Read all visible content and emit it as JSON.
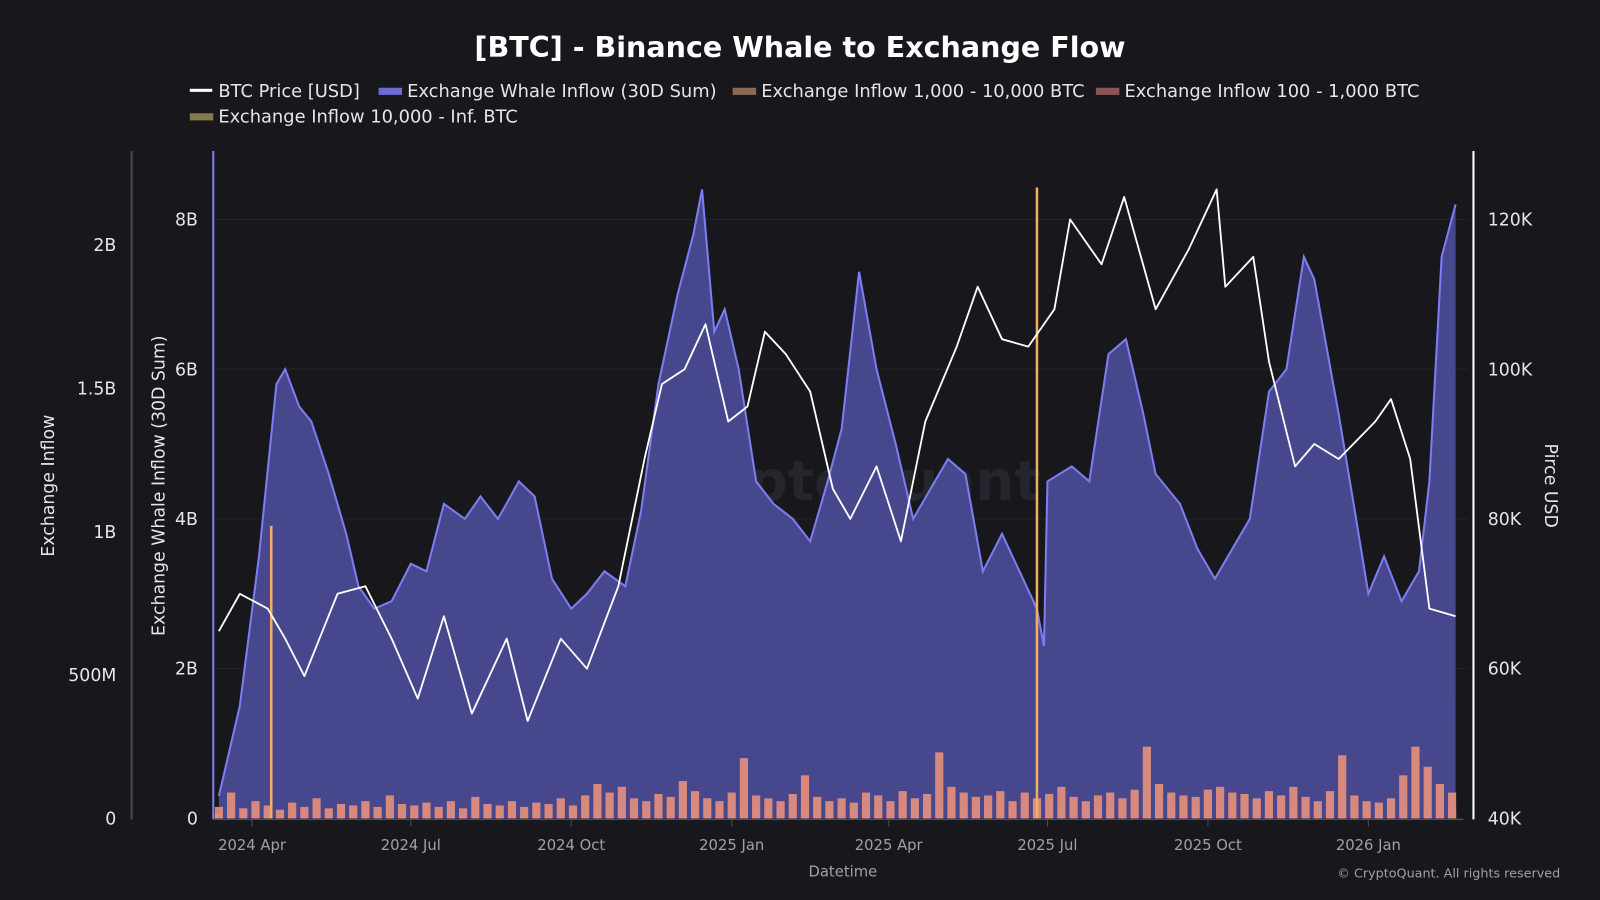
{
  "chart_data": {
    "type": "area",
    "title": "[BTC] - Binance Whale to Exchange Flow",
    "xlabel": "Datetime",
    "x_ticks": [
      "2024 Apr",
      "2024 Jul",
      "2024 Oct",
      "2025 Jan",
      "2025 Apr",
      "2025 Jul",
      "2025 Oct",
      "2026 Jan"
    ],
    "x_tick_dates": [
      "2024-04-01",
      "2024-07-01",
      "2024-10-01",
      "2025-01-01",
      "2025-04-01",
      "2025-07-01",
      "2025-10-01",
      "2026-01-01"
    ],
    "xlim": [
      "2024-03-10",
      "2026-02-28"
    ],
    "axes": {
      "left_outer": {
        "label": "Exchange Inflow",
        "ticks": [
          "0",
          "500M",
          "1B",
          "1.5B",
          "2B"
        ],
        "tick_values": [
          0,
          0.5,
          1,
          1.5,
          2
        ],
        "ylim": [
          0,
          2.33
        ],
        "unit": "B USD"
      },
      "left_inner": {
        "label": "Exchange Whale Inflow (30D Sum)",
        "ticks": [
          "0",
          "2B",
          "4B",
          "6B",
          "8B"
        ],
        "tick_values": [
          0,
          2,
          4,
          6,
          8
        ],
        "ylim": [
          0,
          8.93
        ],
        "unit": "B USD"
      },
      "right": {
        "label": "Pirce USD",
        "ticks": [
          "40K",
          "60K",
          "80K",
          "100K",
          "120K"
        ],
        "tick_values": [
          40,
          60,
          80,
          100,
          120
        ],
        "ylim": [
          40,
          129.3
        ],
        "unit": "K USD"
      }
    },
    "grid": true,
    "legend_placement": "top",
    "legend": [
      {
        "name": "BTC Price [USD]",
        "color": "#ffffff",
        "type": "line"
      },
      {
        "name": "Exchange Whale Inflow (30D Sum)",
        "color": "#6b6bd6",
        "type": "area"
      },
      {
        "name": "Exchange Inflow 1,000 - 10,000 BTC",
        "color": "#8a6a55",
        "type": "bar"
      },
      {
        "name": "Exchange Inflow 100 - 1,000 BTC",
        "color": "#8a5458",
        "type": "bar"
      },
      {
        "name": "Exchange Inflow 10,000 - Inf. BTC",
        "color": "#857a4a",
        "type": "bar"
      }
    ],
    "watermark": "CryptoQuant",
    "copyright": "© CryptoQuant. All rights reserved",
    "colors": {
      "background": "#17171c",
      "whale_fill": "#4a4a94",
      "whale_line": "#7d7df2",
      "inflow_1k_10k": "#e8907c",
      "inflow_100_1k": "#c87a78",
      "inflow_10k_inf": "#f0b060",
      "price": "#ffffff",
      "price_overlap": "#c8c8ff"
    },
    "whale_inflow_30d": {
      "dates": [
        "2024-03-13",
        "2024-03-25",
        "2024-04-05",
        "2024-04-15",
        "2024-04-20",
        "2024-04-28",
        "2024-05-05",
        "2024-05-15",
        "2024-05-25",
        "2024-06-01",
        "2024-06-10",
        "2024-06-20",
        "2024-07-01",
        "2024-07-10",
        "2024-07-20",
        "2024-08-01",
        "2024-08-10",
        "2024-08-20",
        "2024-09-01",
        "2024-09-10",
        "2024-09-20",
        "2024-10-01",
        "2024-10-10",
        "2024-10-20",
        "2024-11-01",
        "2024-11-10",
        "2024-11-20",
        "2024-12-01",
        "2024-12-10",
        "2024-12-15",
        "2024-12-22",
        "2024-12-28",
        "2025-01-05",
        "2025-01-15",
        "2025-01-25",
        "2025-02-05",
        "2025-02-15",
        "2025-02-25",
        "2025-03-05",
        "2025-03-15",
        "2025-03-25",
        "2025-04-05",
        "2025-04-15",
        "2025-04-25",
        "2025-05-05",
        "2025-05-15",
        "2025-05-25",
        "2025-06-05",
        "2025-06-15",
        "2025-06-25",
        "2025-06-29",
        "2025-07-01",
        "2025-07-15",
        "2025-07-25",
        "2025-08-05",
        "2025-08-15",
        "2025-08-25",
        "2025-09-01",
        "2025-09-15",
        "2025-09-25",
        "2025-10-05",
        "2025-10-15",
        "2025-10-25",
        "2025-11-05",
        "2025-11-15",
        "2025-11-25",
        "2025-12-01",
        "2025-12-15",
        "2025-12-25",
        "2026-01-01",
        "2026-01-10",
        "2026-01-20",
        "2026-01-30",
        "2026-02-05",
        "2026-02-12",
        "2026-02-20"
      ],
      "values": [
        0.3,
        1.5,
        3.5,
        5.8,
        6.0,
        5.5,
        5.3,
        4.6,
        3.8,
        3.1,
        2.8,
        2.9,
        3.4,
        3.3,
        4.2,
        4.0,
        4.3,
        4.0,
        4.5,
        4.3,
        3.2,
        2.8,
        3.0,
        3.3,
        3.1,
        4.1,
        5.8,
        7.0,
        7.8,
        8.4,
        6.5,
        6.8,
        6.0,
        4.5,
        4.2,
        4.0,
        3.7,
        4.5,
        5.2,
        7.3,
        6.0,
        5.0,
        4.0,
        4.4,
        4.8,
        4.6,
        3.3,
        3.8,
        3.3,
        2.8,
        2.3,
        4.5,
        4.7,
        4.5,
        6.2,
        6.4,
        5.4,
        4.6,
        4.2,
        3.6,
        3.2,
        3.6,
        4.0,
        5.7,
        6.0,
        7.5,
        7.2,
        5.4,
        4.0,
        3.0,
        3.5,
        2.9,
        3.3,
        4.5,
        7.5,
        8.2
      ]
    },
    "btc_price": {
      "dates": [
        "2024-03-13",
        "2024-03-25",
        "2024-04-10",
        "2024-04-20",
        "2024-05-01",
        "2024-05-20",
        "2024-06-05",
        "2024-06-20",
        "2024-07-05",
        "2024-07-20",
        "2024-08-05",
        "2024-08-25",
        "2024-09-06",
        "2024-09-25",
        "2024-10-10",
        "2024-10-28",
        "2024-11-12",
        "2024-11-22",
        "2024-12-05",
        "2024-12-17",
        "2024-12-30",
        "2025-01-10",
        "2025-01-20",
        "2025-02-01",
        "2025-02-15",
        "2025-02-28",
        "2025-03-10",
        "2025-03-25",
        "2025-04-08",
        "2025-04-22",
        "2025-05-10",
        "2025-05-22",
        "2025-06-05",
        "2025-06-20",
        "2025-07-05",
        "2025-07-14",
        "2025-08-01",
        "2025-08-14",
        "2025-09-01",
        "2025-09-20",
        "2025-10-06",
        "2025-10-11",
        "2025-10-27",
        "2025-11-05",
        "2025-11-20",
        "2025-12-01",
        "2025-12-15",
        "2026-01-05",
        "2026-01-14",
        "2026-01-25",
        "2026-02-05",
        "2026-02-20"
      ],
      "values": [
        65,
        70,
        68,
        64,
        59,
        70,
        71,
        64,
        56,
        67,
        54,
        64,
        53,
        64,
        60,
        71,
        88,
        98,
        100,
        106,
        93,
        95,
        105,
        102,
        97,
        84,
        80,
        87,
        77,
        93,
        103,
        111,
        104,
        103,
        108,
        120,
        114,
        123,
        108,
        116,
        124,
        111,
        115,
        101,
        87,
        90,
        88,
        93,
        96,
        88,
        68,
        67
      ]
    },
    "inflow_1k_10k_weekly": {
      "start": "2024-03-13",
      "unit": "M USD",
      "values": [
        40,
        90,
        35,
        60,
        45,
        30,
        55,
        40,
        70,
        35,
        50,
        45,
        60,
        40,
        80,
        50,
        45,
        55,
        40,
        60,
        35,
        75,
        50,
        45,
        60,
        40,
        55,
        50,
        70,
        45,
        80,
        120,
        90,
        110,
        70,
        60,
        85,
        75,
        130,
        95,
        70,
        60,
        90,
        210,
        80,
        70,
        60,
        85,
        150,
        75,
        60,
        70,
        55,
        90,
        80,
        60,
        95,
        70,
        85,
        230,
        110,
        90,
        75,
        80,
        95,
        60,
        90,
        70,
        85,
        110,
        75,
        60,
        80,
        90,
        70,
        100,
        250,
        120,
        90,
        80,
        75,
        100,
        110,
        90,
        85,
        70,
        95,
        80,
        110,
        75,
        60,
        95,
        220,
        80,
        60,
        55,
        70,
        150,
        250,
        180,
        120,
        90
      ]
    },
    "inflow_100_1k_weekly": {
      "start": "2024-03-13",
      "unit": "M USD",
      "values": [
        15,
        20,
        18,
        22,
        16,
        14,
        20,
        18,
        25,
        17,
        19,
        21,
        18,
        16,
        24,
        20,
        18,
        22,
        17,
        21,
        15,
        23,
        19,
        18,
        22,
        17,
        20,
        19,
        24,
        18,
        26,
        32,
        28,
        30,
        24,
        22,
        27,
        25,
        33,
        28,
        24,
        22,
        27,
        30,
        25,
        23,
        21,
        26,
        31,
        24,
        21,
        23,
        20,
        27,
        25,
        21,
        28,
        23,
        26,
        34,
        30,
        27,
        24,
        25,
        28,
        21,
        27,
        23,
        26,
        30,
        24,
        21,
        25,
        27,
        23,
        29,
        35,
        31,
        27,
        25,
        24,
        29,
        30,
        27,
        26,
        23,
        28,
        25,
        30,
        24,
        21,
        28,
        33,
        25,
        21,
        20,
        23,
        32,
        38,
        34,
        30,
        27
      ]
    },
    "inflow_10k_inf_events": {
      "dates": [
        "2024-04-12",
        "2025-06-25"
      ],
      "values": [
        1.02,
        2.2
      ],
      "unit": "B USD"
    }
  }
}
